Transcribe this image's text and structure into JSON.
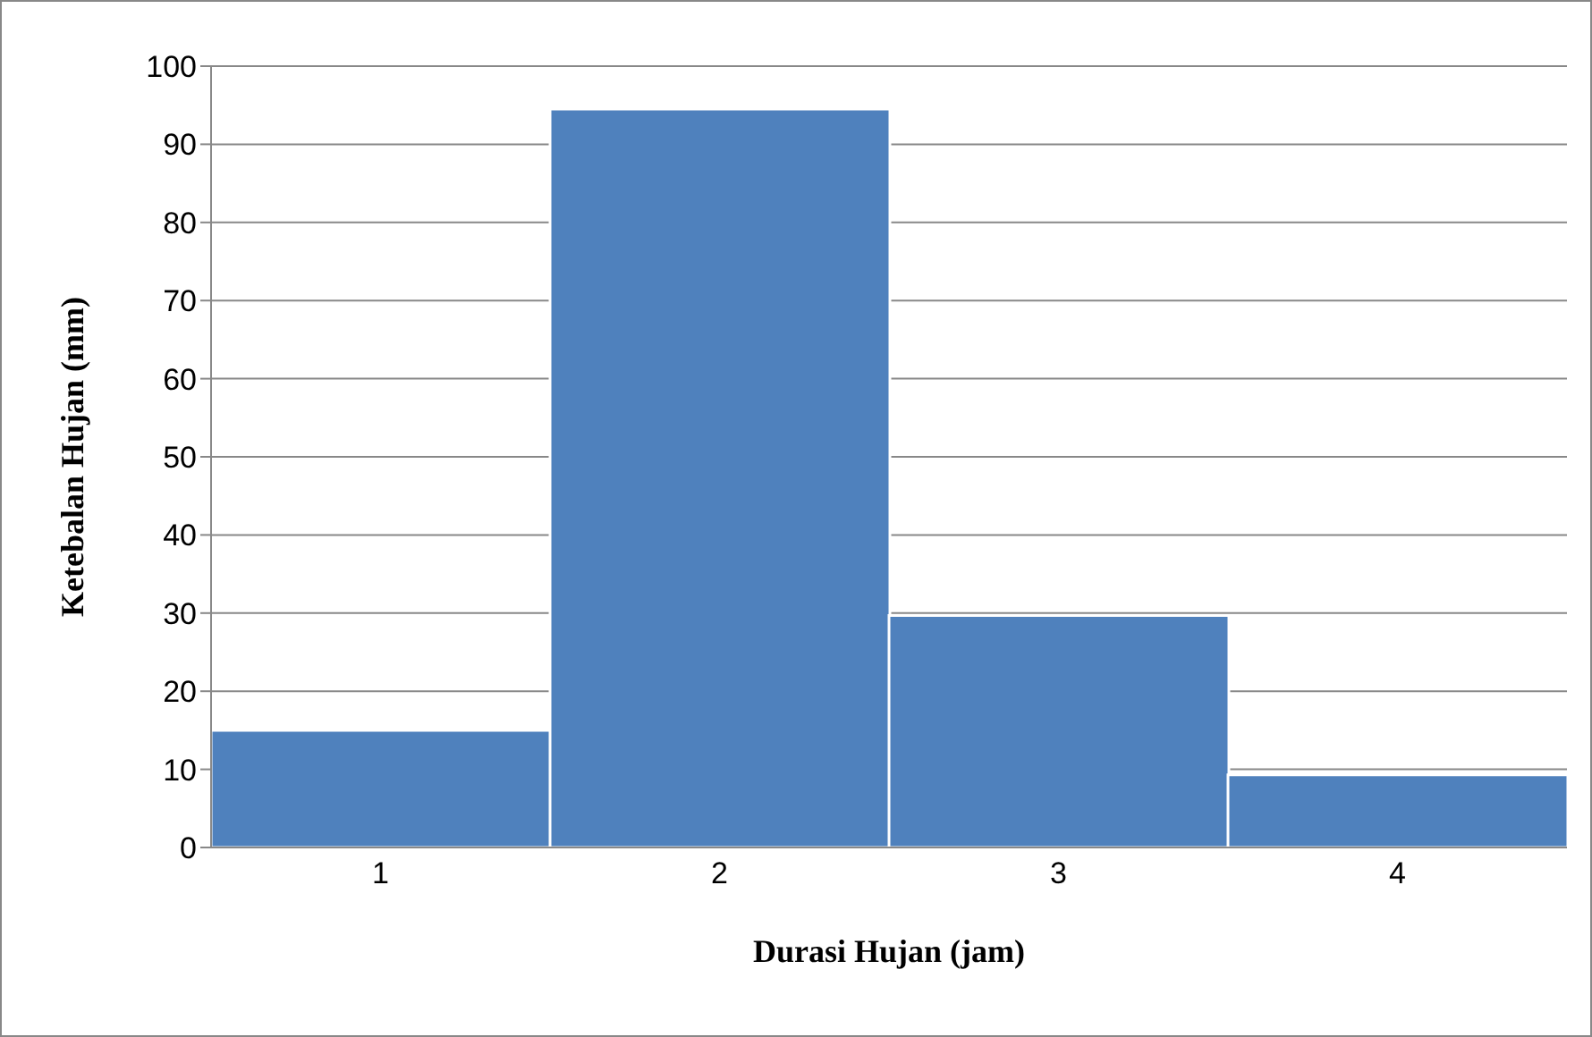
{
  "chart_data": {
    "type": "bar",
    "xlabel": "Durasi Hujan (jam)",
    "ylabel": "Ketebalan Hujan (mm)",
    "categories": [
      "1",
      "2",
      "3",
      "4"
    ],
    "values": [
      15,
      94.5,
      29.7,
      9.3
    ],
    "color": "#4f81bd",
    "ylim": [
      0,
      100
    ],
    "yticks": [
      0,
      10,
      20,
      30,
      40,
      50,
      60,
      70,
      80,
      90,
      100
    ],
    "grid": "y"
  }
}
